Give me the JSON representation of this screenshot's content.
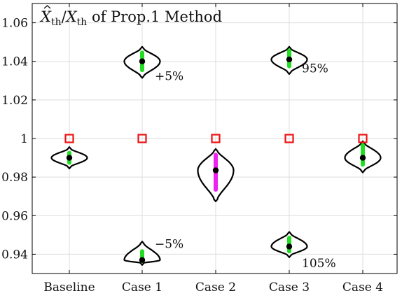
{
  "chart_data": {
    "type": "violin",
    "title": "X̂th/Xth of Prop.1 Method",
    "title_parts": {
      "x": "X",
      "sub1": "th",
      "slash": "/",
      "sub2": "th",
      "suffix": " of Prop.1 Method"
    },
    "xlabel": "",
    "ylabel": "",
    "categories": [
      "Baseline",
      "Case 1",
      "Case 2",
      "Case 3",
      "Case 4"
    ],
    "ylim": [
      0.93,
      1.07
    ],
    "yticks": [
      0.94,
      0.96,
      0.98,
      1,
      1.02,
      1.04,
      1.06
    ],
    "ytick_labels": [
      "0.94",
      "0.96",
      "0.98",
      "1",
      "1.02",
      "1.04",
      "1.06"
    ],
    "grid": true,
    "reference_markers": {
      "style": "red-square",
      "values": [
        1,
        1,
        1,
        1,
        1
      ]
    },
    "violins": [
      {
        "category": "Baseline",
        "center": 0.99,
        "low": 0.9855,
        "high": 0.9945,
        "median": 0.99,
        "q1": 0.9875,
        "q3": 0.9925,
        "whisker_color": "#22dd22"
      },
      {
        "category": "Case 1",
        "center": 1.04,
        "low": 1.0325,
        "high": 1.0465,
        "median": 1.04,
        "q1": 1.0355,
        "q3": 1.0445,
        "whisker_color": "#22dd22"
      },
      {
        "category": "Case 1",
        "center": 0.937,
        "low": 0.9355,
        "high": 0.9455,
        "median": 0.937,
        "q1": 0.9365,
        "q3": 0.9415,
        "whisker_color": "#22dd22"
      },
      {
        "category": "Case 2",
        "center": 0.9835,
        "low": 0.9685,
        "high": 0.9935,
        "median": 0.9835,
        "q1": 0.9735,
        "q3": 0.9915,
        "whisker_color": "#ee22ee"
      },
      {
        "category": "Case 3",
        "center": 1.041,
        "low": 1.0345,
        "high": 1.0465,
        "median": 1.041,
        "q1": 1.0375,
        "q3": 1.0455,
        "whisker_color": "#22dd22"
      },
      {
        "category": "Case 3",
        "center": 0.944,
        "low": 0.9395,
        "high": 0.9505,
        "median": 0.944,
        "q1": 0.9415,
        "q3": 0.9485,
        "whisker_color": "#22dd22"
      },
      {
        "category": "Case 4",
        "center": 0.99,
        "low": 0.9835,
        "high": 0.9975,
        "median": 0.99,
        "q1": 0.9865,
        "q3": 0.9965,
        "whisker_color": "#22dd22"
      }
    ],
    "annotations": [
      {
        "text": "+5%",
        "category": "Case 1",
        "y": 1.0325
      },
      {
        "text": "−5%",
        "category": "Case 1",
        "y": 0.9455
      },
      {
        "text": "95%",
        "category": "Case 3",
        "y": 1.0365
      },
      {
        "text": "105%",
        "category": "Case 3",
        "y": 0.9355
      }
    ],
    "colors": {
      "reference": "#ee1111",
      "median": "#000000",
      "outline": "#000000",
      "grid": "#dddddd"
    }
  }
}
